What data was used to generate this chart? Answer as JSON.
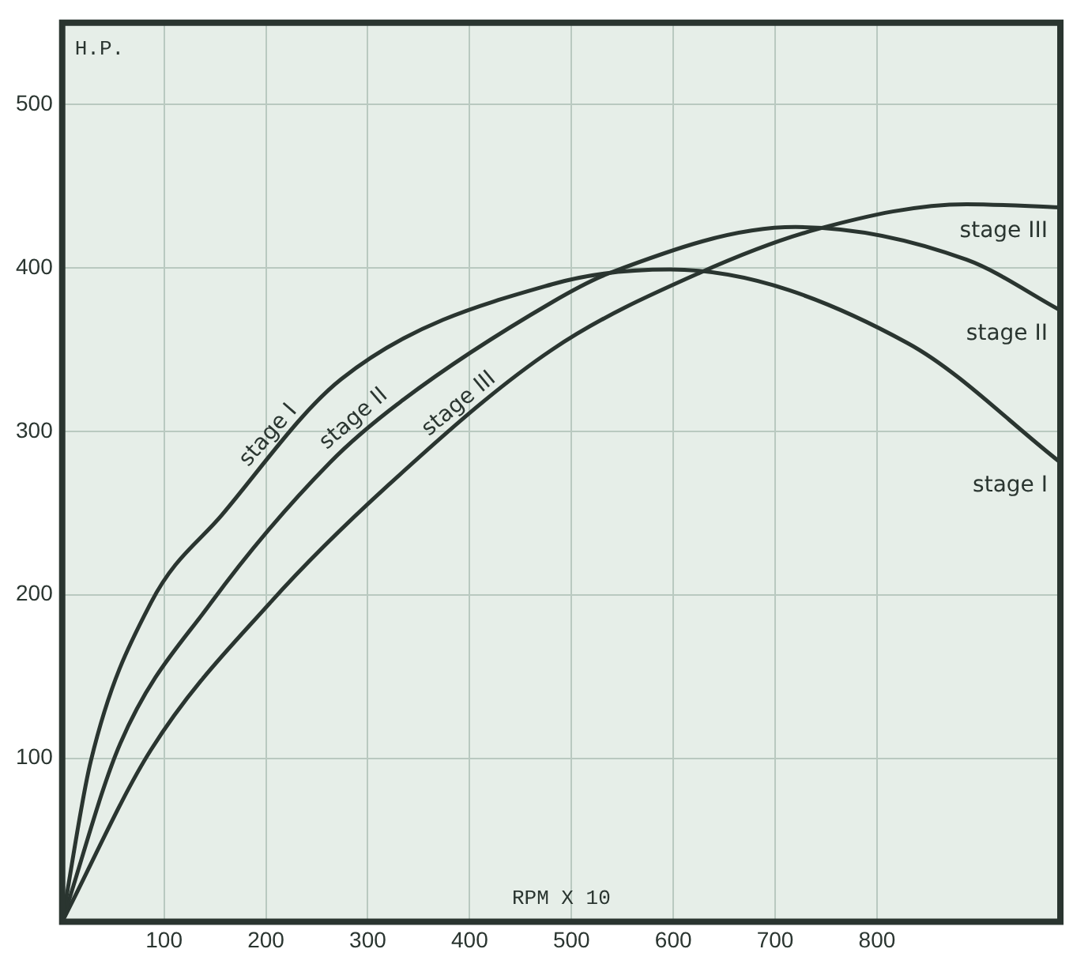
{
  "chart_data": {
    "type": "line",
    "ylabel": "H.P.",
    "xlabel": "RPM X 10",
    "xlim": [
      0,
      980
    ],
    "ylim": [
      0,
      550
    ],
    "xticks": [
      100,
      200,
      300,
      400,
      500,
      600,
      700,
      800
    ],
    "yticks": [
      100,
      200,
      300,
      400,
      500
    ],
    "grid": true,
    "legend": false,
    "marker": "none",
    "line_style": "solid",
    "series": [
      {
        "name": "stage I",
        "color": "#2a3530",
        "x": [
          0,
          28,
          87,
          157,
          274,
          481,
          597,
          830,
          980
        ],
        "values": [
          0,
          98,
          195,
          249,
          332,
          390,
          399,
          354,
          281
        ]
      },
      {
        "name": "stage II",
        "color": "#2a3530",
        "x": [
          0,
          57,
          146,
          263,
          332,
          481,
          538,
          720,
          888,
          980
        ],
        "values": [
          0,
          109,
          195,
          281,
          318,
          379,
          397,
          425,
          405,
          374
        ]
      },
      {
        "name": "stage III",
        "color": "#2a3530",
        "x": [
          0,
          87,
          204,
          320,
          481,
          626,
          743,
          888,
          980
        ],
        "values": [
          0,
          105,
          195,
          267,
          350,
          397,
          424,
          439,
          437
        ]
      }
    ]
  }
}
